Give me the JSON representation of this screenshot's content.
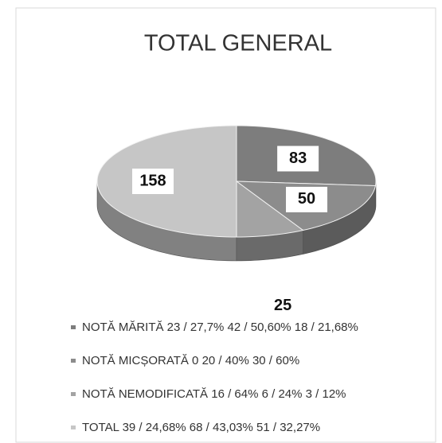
{
  "chart_data": {
    "type": "pie",
    "title": "TOTAL GENERAL",
    "categories": [
      "NOTĂ MĂRITĂ 23 / 27,7% 42 / 50,60% 18 / 21,68%",
      "NOTĂ MICȘORATĂ 0 20 / 40% 30 / 60%",
      "NOTĂ NEMODIFICATĂ 16 / 64% 6 / 24% 3 / 12%",
      "TOTAL 39 / 24,68% 68 / 43,03% 51 / 32,27%"
    ],
    "values": [
      83,
      50,
      25,
      158
    ],
    "colors": [
      "#7d7d7d",
      "#8c8c8c",
      "#a3a3a3",
      "#c6c6c6"
    ]
  }
}
